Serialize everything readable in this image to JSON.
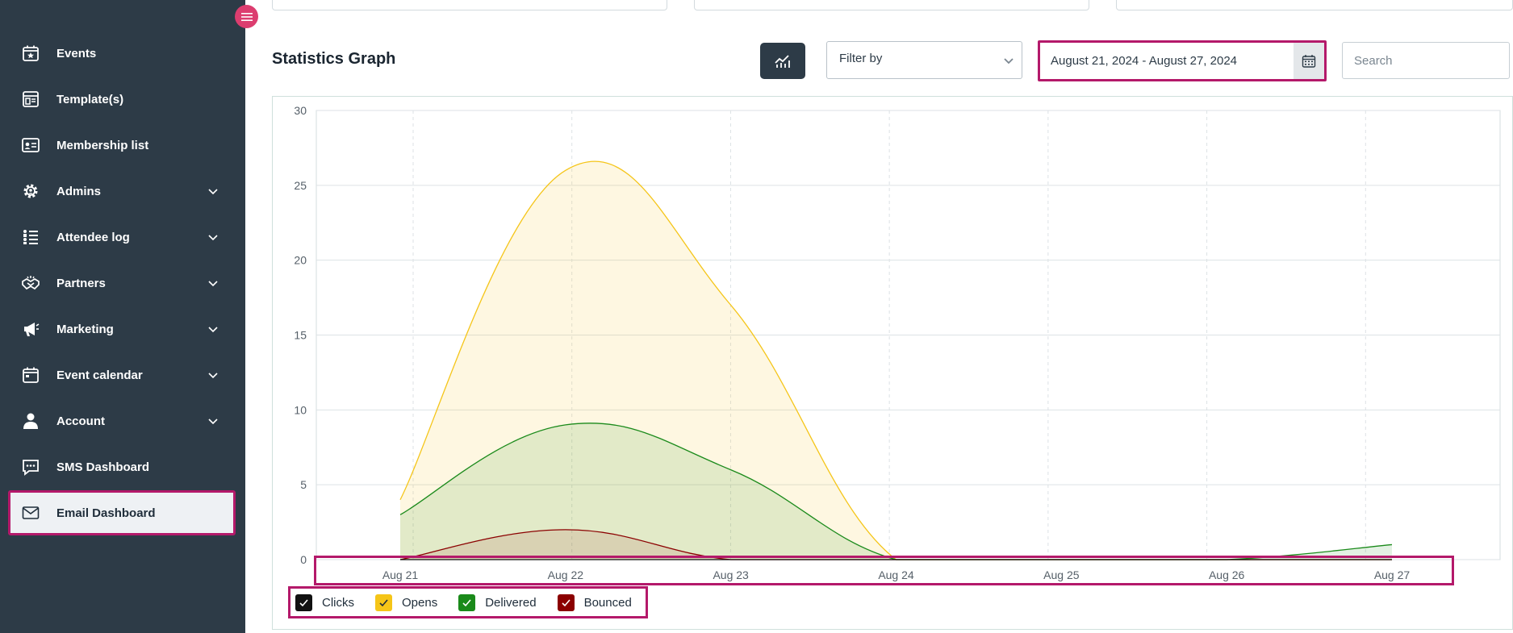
{
  "sidebar": {
    "items": [
      {
        "label": "Events",
        "icon": "calendar-star-icon",
        "chevron": false
      },
      {
        "label": "Template(s)",
        "icon": "template-icon",
        "chevron": false
      },
      {
        "label": "Membership list",
        "icon": "id-card-icon",
        "chevron": false
      },
      {
        "label": "Admins",
        "icon": "gear-user-icon",
        "chevron": true
      },
      {
        "label": "Attendee log",
        "icon": "list-users-icon",
        "chevron": true
      },
      {
        "label": "Partners",
        "icon": "handshake-icon",
        "chevron": true
      },
      {
        "label": "Marketing",
        "icon": "megaphone-icon",
        "chevron": true
      },
      {
        "label": "Event calendar",
        "icon": "calendar-icon",
        "chevron": true
      },
      {
        "label": "Account",
        "icon": "user-icon",
        "chevron": true
      },
      {
        "label": "SMS Dashboard",
        "icon": "sms-icon",
        "chevron": false
      },
      {
        "label": "Email Dashboard",
        "icon": "mail-icon",
        "chevron": false,
        "active": true
      }
    ]
  },
  "header": {
    "title": "Statistics Graph",
    "filter_label": "Filter by",
    "date_range": "August 21, 2024 - August 27, 2024",
    "search_placeholder": "Search"
  },
  "colors": {
    "sidebar_bg": "#2d3b47",
    "highlight": "#b4196a",
    "clicks": "#111111",
    "opens": "#f5c518",
    "delivered": "#1a8a1a",
    "bounced": "#8b0000"
  },
  "chart_data": {
    "type": "area",
    "x": [
      "Aug 21",
      "Aug 22",
      "Aug 23",
      "Aug 24",
      "Aug 25",
      "Aug 26",
      "Aug 27"
    ],
    "ylim": [
      0,
      30
    ],
    "yticks": [
      0,
      5,
      10,
      15,
      20,
      25,
      30
    ],
    "grid": true,
    "legend_position": "bottom-left",
    "series": [
      {
        "name": "Clicks",
        "values": [
          0,
          0,
          0,
          0,
          0,
          0,
          0
        ],
        "color": "#111111"
      },
      {
        "name": "Opens",
        "values": [
          4,
          26,
          17,
          0,
          0,
          0,
          0
        ],
        "color": "#f5c518"
      },
      {
        "name": "Delivered",
        "values": [
          3,
          9,
          6,
          0,
          0,
          0,
          1
        ],
        "color": "#1a8a1a"
      },
      {
        "name": "Bounced",
        "values": [
          0,
          2,
          0,
          0,
          0,
          0,
          0
        ],
        "color": "#8b0000"
      }
    ]
  }
}
